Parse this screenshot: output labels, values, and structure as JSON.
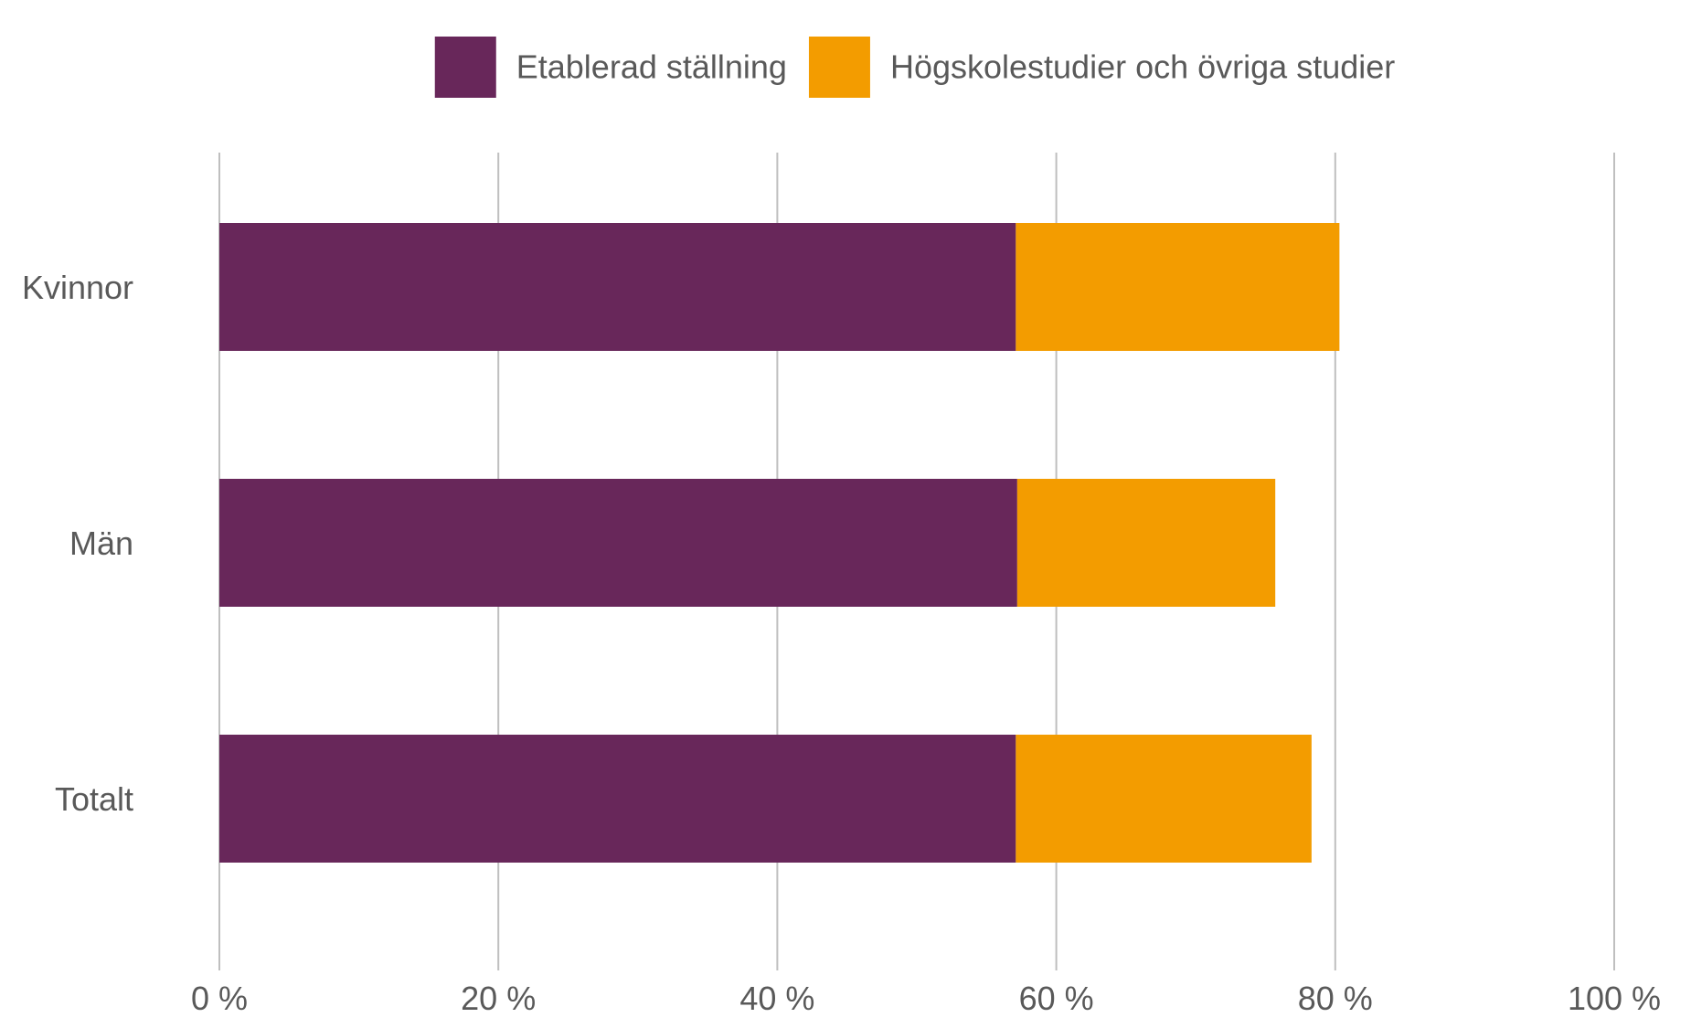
{
  "chart_data": {
    "type": "bar",
    "orientation": "horizontal",
    "stacked": true,
    "categories": [
      "Kvinnor",
      "Män",
      "Totalt"
    ],
    "series": [
      {
        "name": "Etablerad ställning",
        "color": "#68275a",
        "values": [
          57.1,
          57.2,
          57.1
        ]
      },
      {
        "name": "Högskolestudier och övriga studier",
        "color": "#f39c00",
        "values": [
          23.2,
          18.5,
          21.2
        ]
      }
    ],
    "xlim": [
      0,
      100
    ],
    "xticks": [
      0,
      20,
      40,
      60,
      80,
      100
    ],
    "tick_labels": [
      "0 %",
      "20 %",
      "40 %",
      "60 %",
      "80 %",
      "100 %"
    ],
    "grid": true,
    "legend_position": "top"
  }
}
